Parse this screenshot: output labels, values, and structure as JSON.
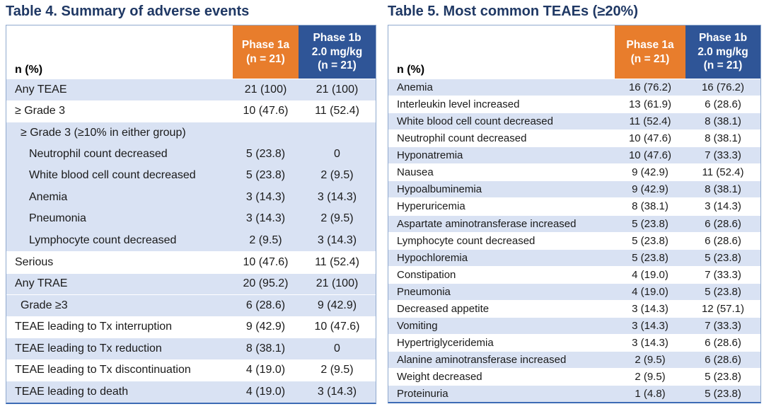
{
  "colors": {
    "titleNavy": "#1F3864",
    "orange": "#E87D2C",
    "blueHead": "#2F5597",
    "rowBlue": "#D9E2F3",
    "borderLight": "#8FA9CE",
    "borderBottom": "#3E6CB5"
  },
  "table4": {
    "title": "Table 4. Summary of adverse events",
    "header": {
      "label": "n (%)",
      "phase1a": "Phase 1a\n(n = 21)",
      "phase1b": "Phase 1b\n2.0 mg/kg\n(n = 21)"
    },
    "rows": [
      {
        "label": "Any TEAE",
        "a": "21 (100)",
        "b": "21 (100)",
        "shade": "blue",
        "indent": 0
      },
      {
        "label": "≥ Grade 3",
        "a": "10 (47.6)",
        "b": "11 (52.4)",
        "shade": "white",
        "indent": 0
      },
      {
        "label": "≥ Grade 3 (≥10% in either group)",
        "a": "",
        "b": "",
        "shade": "blue",
        "indent": 1
      },
      {
        "label": "Neutrophil count decreased",
        "a": "5 (23.8)",
        "b": "0",
        "shade": "blue",
        "indent": 2,
        "merge": true
      },
      {
        "label": "White blood cell count decreased",
        "a": "5 (23.8)",
        "b": "2 (9.5)",
        "shade": "blue",
        "indent": 2,
        "merge": true
      },
      {
        "label": "Anemia",
        "a": "3 (14.3)",
        "b": "3 (14.3)",
        "shade": "blue",
        "indent": 2,
        "merge": true
      },
      {
        "label": "Pneumonia",
        "a": "3 (14.3)",
        "b": "2 (9.5)",
        "shade": "blue",
        "indent": 2,
        "merge": true
      },
      {
        "label": "Lymphocyte count decreased",
        "a": "2 (9.5)",
        "b": "3 (14.3)",
        "shade": "blue",
        "indent": 2,
        "merge": true
      },
      {
        "label": "Serious",
        "a": "10 (47.6)",
        "b": "11 (52.4)",
        "shade": "white",
        "indent": 0
      },
      {
        "label": "Any TRAE",
        "a": "20 (95.2)",
        "b": "21 (100)",
        "shade": "blue",
        "indent": 0
      },
      {
        "label": "Grade ≥3",
        "a": "6 (28.6)",
        "b": "9 (42.9)",
        "shade": "blue",
        "indent": 1
      },
      {
        "label": "TEAE leading to Tx interruption",
        "a": "9 (42.9)",
        "b": "10 (47.6)",
        "shade": "white",
        "indent": 0
      },
      {
        "label": "TEAE leading to Tx reduction",
        "a": "8 (38.1)",
        "b": "0",
        "shade": "blue",
        "indent": 0
      },
      {
        "label": "TEAE leading to Tx discontinuation",
        "a": "4 (19.0)",
        "b": "2 (9.5)",
        "shade": "white",
        "indent": 0
      },
      {
        "label": "TEAE leading to death",
        "a": "4 (19.0)",
        "b": "3 (14.3)",
        "shade": "blue",
        "indent": 0
      }
    ]
  },
  "table5": {
    "title": "Table 5. Most common TEAEs (≥20%)",
    "header": {
      "label": "n (%)",
      "phase1a": "Phase 1a\n(n = 21)",
      "phase1b": "Phase 1b\n2.0 mg/kg\n(n = 21)"
    },
    "rows": [
      {
        "label": "Anemia",
        "a": "16 (76.2)",
        "b": "16 (76.2)",
        "shade": "blue",
        "indent": 0
      },
      {
        "label": "Interleukin level increased",
        "a": "13 (61.9)",
        "b": "6 (28.6)",
        "shade": "white",
        "indent": 0
      },
      {
        "label": "White blood cell count decreased",
        "a": "11 (52.4)",
        "b": "8 (38.1)",
        "shade": "blue",
        "indent": 0
      },
      {
        "label": "Neutrophil count decreased",
        "a": "10 (47.6)",
        "b": "8 (38.1)",
        "shade": "white",
        "indent": 0
      },
      {
        "label": "Hyponatremia",
        "a": "10 (47.6)",
        "b": "7 (33.3)",
        "shade": "blue",
        "indent": 0
      },
      {
        "label": "Nausea",
        "a": "9 (42.9)",
        "b": "11 (52.4)",
        "shade": "white",
        "indent": 0
      },
      {
        "label": "Hypoalbuminemia",
        "a": "9 (42.9)",
        "b": "8 (38.1)",
        "shade": "blue",
        "indent": 0
      },
      {
        "label": "Hyperuricemia",
        "a": "8 (38.1)",
        "b": "3 (14.3)",
        "shade": "white",
        "indent": 0
      },
      {
        "label": "Aspartate aminotransferase increased",
        "a": "5 (23.8)",
        "b": "6 (28.6)",
        "shade": "blue",
        "indent": 0
      },
      {
        "label": "Lymphocyte count decreased",
        "a": "5 (23.8)",
        "b": "6 (28.6)",
        "shade": "white",
        "indent": 0
      },
      {
        "label": "Hypochloremia",
        "a": "5 (23.8)",
        "b": "5 (23.8)",
        "shade": "blue",
        "indent": 0
      },
      {
        "label": "Constipation",
        "a": "4 (19.0)",
        "b": "7 (33.3)",
        "shade": "white",
        "indent": 0
      },
      {
        "label": "Pneumonia",
        "a": "4 (19.0)",
        "b": "5 (23.8)",
        "shade": "blue",
        "indent": 0
      },
      {
        "label": "Decreased appetite",
        "a": "3 (14.3)",
        "b": "12 (57.1)",
        "shade": "white",
        "indent": 0
      },
      {
        "label": "Vomiting",
        "a": "3 (14.3)",
        "b": "7 (33.3)",
        "shade": "blue",
        "indent": 0
      },
      {
        "label": "Hypertriglyceridemia",
        "a": "3 (14.3)",
        "b": "6 (28.6)",
        "shade": "white",
        "indent": 0
      },
      {
        "label": "Alanine aminotransferase increased",
        "a": "2 (9.5)",
        "b": "6 (28.6)",
        "shade": "blue",
        "indent": 0
      },
      {
        "label": "Weight decreased",
        "a": "2 (9.5)",
        "b": "5 (23.8)",
        "shade": "white",
        "indent": 0
      },
      {
        "label": "Proteinuria",
        "a": "1 (4.8)",
        "b": "5 (23.8)",
        "shade": "blue",
        "indent": 0
      }
    ]
  }
}
